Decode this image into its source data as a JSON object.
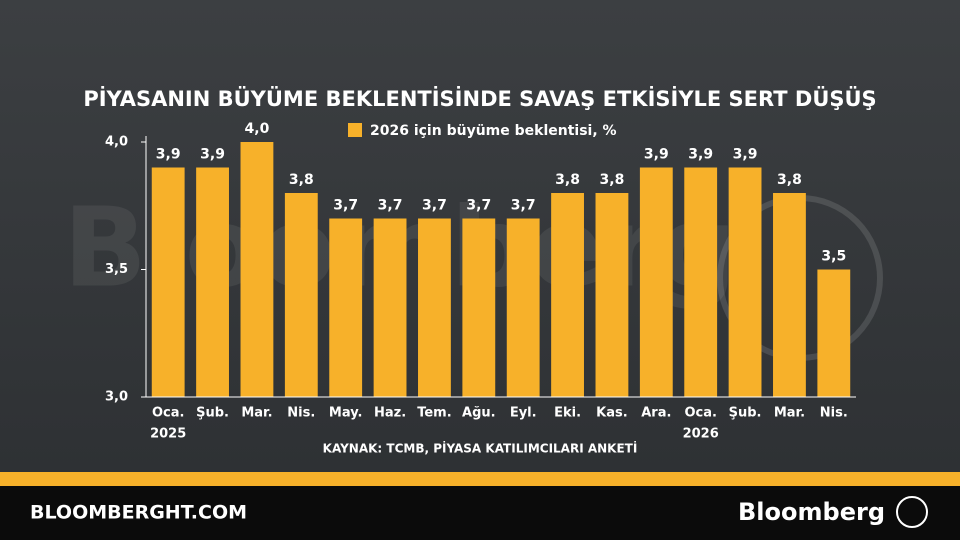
{
  "chart_data": {
    "type": "bar",
    "title": "PİYASANIN BÜYÜME BEKLENTİSİNDE SAVAŞ ETKİSİYLE SERT DÜŞÜŞ",
    "legend": "2026 için büyüme beklentisi, %",
    "source": "KAYNAK: TCMB, PİYASA KATILIMCILARI ANKETİ",
    "watermark": "Bloomberg",
    "categories": [
      "Oca.",
      "Şub.",
      "Mar.",
      "Nis.",
      "May.",
      "Haz.",
      "Tem.",
      "Ağu.",
      "Eyl.",
      "Eki.",
      "Kas.",
      "Ara.",
      "Oca.",
      "Şub.",
      "Mar.",
      "Nis."
    ],
    "year_labels": [
      "2025",
      null,
      null,
      null,
      null,
      null,
      null,
      null,
      null,
      null,
      null,
      null,
      "2026",
      null,
      null,
      null
    ],
    "values": [
      3.9,
      3.9,
      4.0,
      3.8,
      3.7,
      3.7,
      3.7,
      3.7,
      3.7,
      3.8,
      3.8,
      3.9,
      3.9,
      3.9,
      3.8,
      3.5
    ],
    "value_labels": [
      "3,9",
      "3,9",
      "4,0",
      "3,8",
      "3,7",
      "3,7",
      "3,7",
      "3,7",
      "3,7",
      "3,8",
      "3,8",
      "3,9",
      "3,9",
      "3,9",
      "3,8",
      "3,5"
    ],
    "color": "#f7b12a",
    "ylim": [
      3.0,
      4.0
    ],
    "yticks": [
      {
        "value": 3.0,
        "label": "3,0"
      },
      {
        "value": 3.5,
        "label": "3,5"
      },
      {
        "value": 4.0,
        "label": "4,0"
      }
    ]
  },
  "footer": {
    "site": "BLOOMBERGHT.COM",
    "brand": "Bloomberg"
  }
}
